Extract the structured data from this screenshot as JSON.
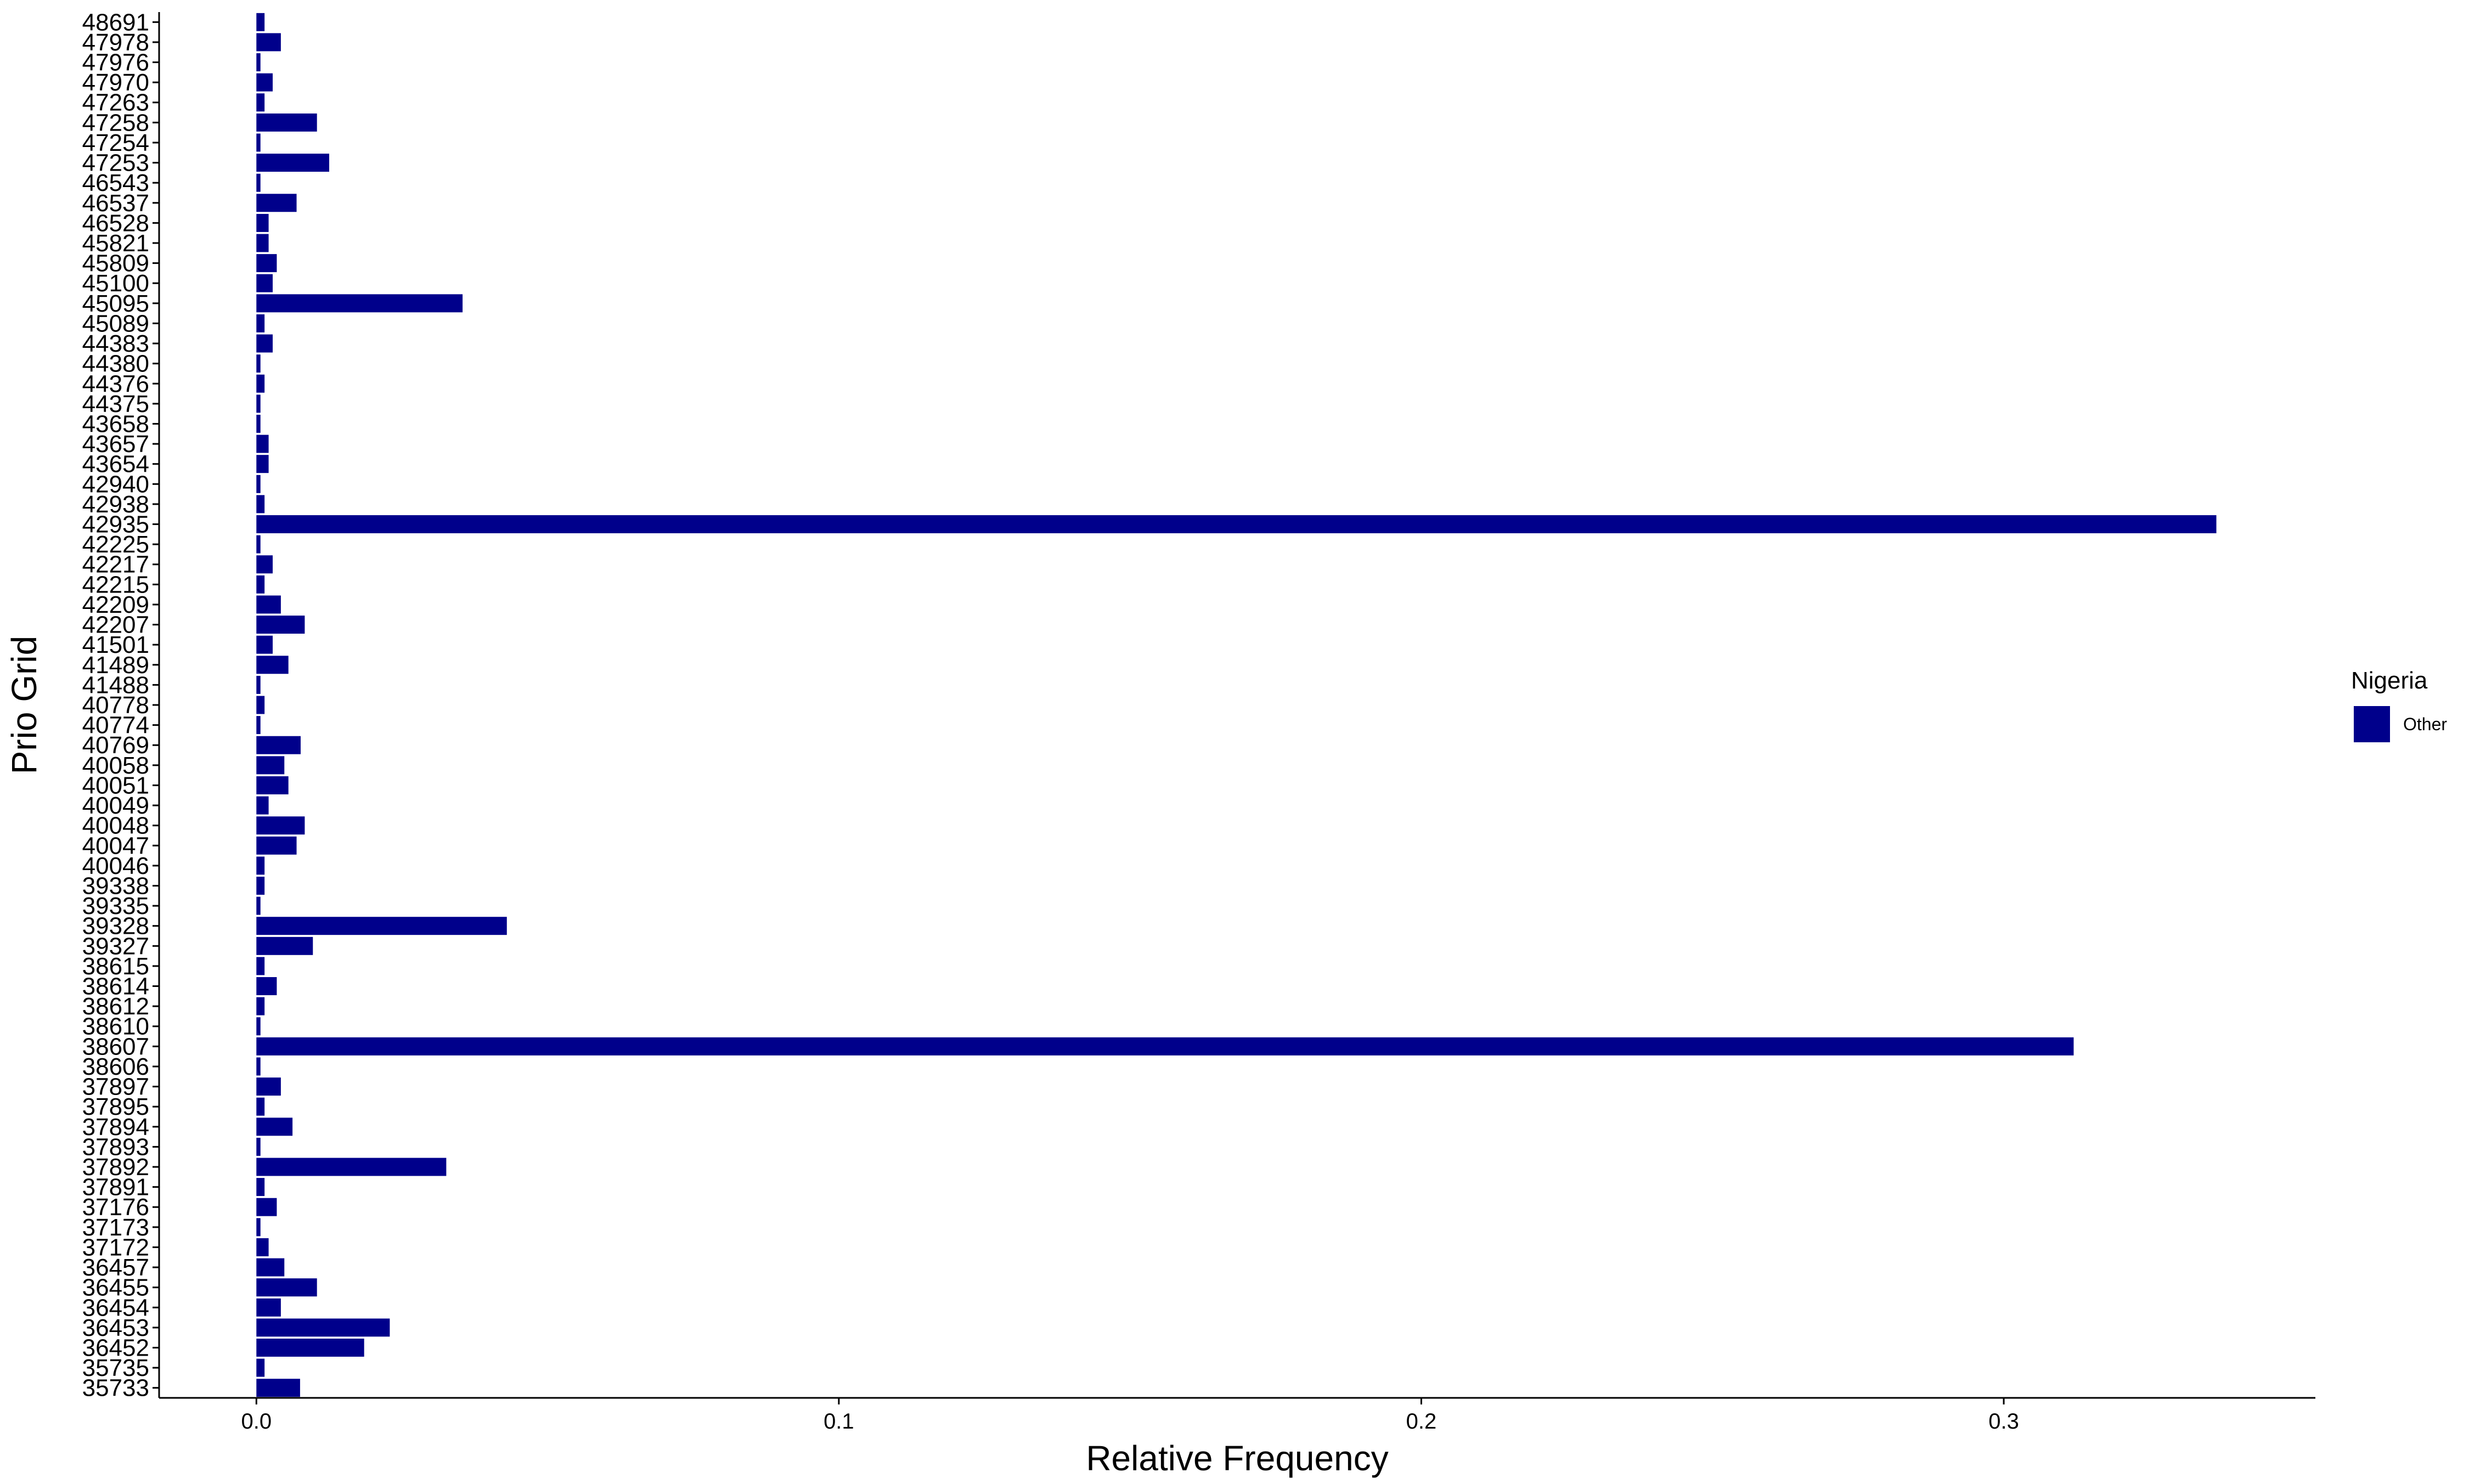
{
  "chart_data": {
    "type": "bar",
    "orientation": "horizontal",
    "title": "",
    "xlabel": "Relative Frequency",
    "ylabel": "Prio Grid",
    "xlim": [
      -0.0167,
      0.3535
    ],
    "xticks": [
      0.0,
      0.1,
      0.2,
      0.3
    ],
    "xtick_labels": [
      "0.0",
      "0.1",
      "0.2",
      "0.3"
    ],
    "grid": false,
    "legend": {
      "title": "Nigeria",
      "placement": "right",
      "entries": [
        "Other"
      ]
    },
    "categories": [
      "35733",
      "35735",
      "36452",
      "36453",
      "36454",
      "36455",
      "36457",
      "37172",
      "37173",
      "37176",
      "37891",
      "37892",
      "37893",
      "37894",
      "37895",
      "37897",
      "38606",
      "38607",
      "38610",
      "38612",
      "38614",
      "38615",
      "39327",
      "39328",
      "39335",
      "39338",
      "40046",
      "40047",
      "40048",
      "40049",
      "40051",
      "40058",
      "40769",
      "40774",
      "40778",
      "41488",
      "41489",
      "41501",
      "42207",
      "42209",
      "42215",
      "42217",
      "42225",
      "42935",
      "42938",
      "42940",
      "43654",
      "43657",
      "43658",
      "44375",
      "44376",
      "44380",
      "44383",
      "45089",
      "45095",
      "45100",
      "45809",
      "45821",
      "46528",
      "46537",
      "46543",
      "47253",
      "47254",
      "47258",
      "47263",
      "47970",
      "47976",
      "47978",
      "48691"
    ],
    "series": [
      {
        "name": "Other",
        "color": "#00008b",
        "values": [
          0.0075,
          0.0014,
          0.0185,
          0.0229,
          0.0042,
          0.0104,
          0.0048,
          0.0021,
          0.0007,
          0.0035,
          0.0014,
          0.0326,
          0.0007,
          0.0062,
          0.0014,
          0.0042,
          0.0007,
          0.312,
          0.0007,
          0.0014,
          0.0035,
          0.0014,
          0.0097,
          0.043,
          0.0007,
          0.0014,
          0.0014,
          0.0069,
          0.0083,
          0.0021,
          0.0055,
          0.0048,
          0.0076,
          0.0007,
          0.0014,
          0.0007,
          0.0055,
          0.0028,
          0.0083,
          0.0042,
          0.0014,
          0.0028,
          0.0007,
          0.3365,
          0.0014,
          0.0007,
          0.0021,
          0.0021,
          0.0007,
          0.0007,
          0.0014,
          0.0007,
          0.0028,
          0.0014,
          0.0354,
          0.0028,
          0.0035,
          0.0021,
          0.0021,
          0.0069,
          0.0007,
          0.0125,
          0.0007,
          0.0104,
          0.0014,
          0.0028,
          0.0007,
          0.0042,
          0.0014
        ]
      }
    ]
  }
}
